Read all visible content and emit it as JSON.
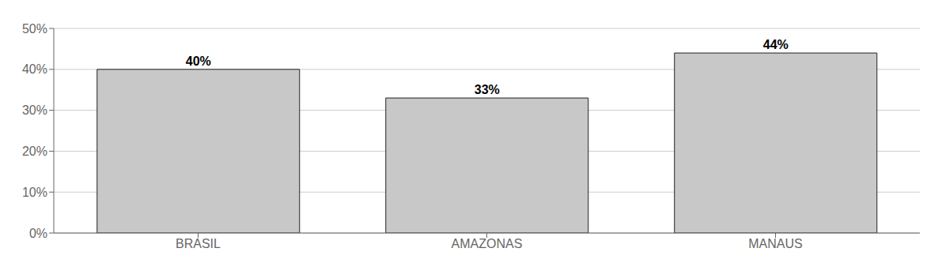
{
  "chart_data": {
    "type": "bar",
    "categories": [
      "BRASIL",
      "AMAZONAS",
      "MANAUS"
    ],
    "values": [
      0.4,
      0.33,
      0.44
    ],
    "value_labels": [
      "40%",
      "33%",
      "44%"
    ],
    "data_labels": true,
    "color": "#c8c8c8",
    "ylim": [
      0,
      0.5
    ],
    "yticks": [
      {
        "value": 0.0,
        "label": "0%"
      },
      {
        "value": 0.1,
        "label": "10%"
      },
      {
        "value": 0.2,
        "label": "20%"
      },
      {
        "value": 0.3,
        "label": "30%"
      },
      {
        "value": 0.4,
        "label": "40%"
      },
      {
        "value": 0.5,
        "label": "50%"
      }
    ],
    "grid": true
  }
}
